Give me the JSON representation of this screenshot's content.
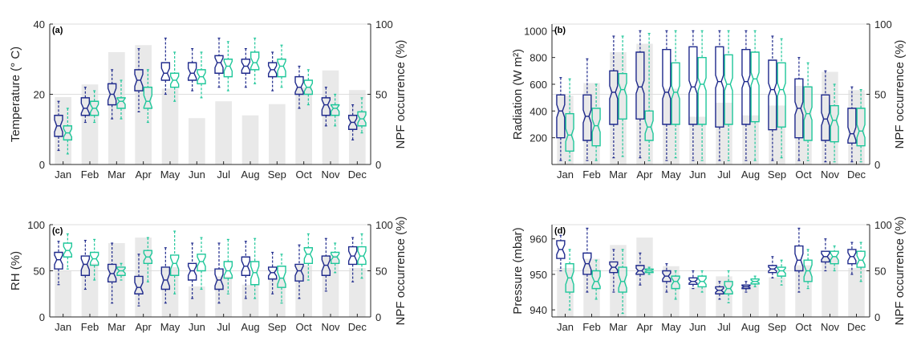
{
  "colors": {
    "series_a": "#1f2a8c",
    "series_b": "#1fc79a",
    "npf_bar": "#e9e9e9",
    "grid": "#dddddd"
  },
  "chart_data": [
    {
      "type": "box",
      "panel_label": "(a)",
      "ylabel": "Temperature (° C)",
      "ylabel_right": "NPF occurrence (%)",
      "categories": [
        "Jan",
        "Feb",
        "Mar",
        "Apr",
        "May",
        "Jun",
        "Jul",
        "Aug",
        "Sep",
        "Oct",
        "Nov",
        "Dec"
      ],
      "ylim": [
        0,
        40
      ],
      "yticks": [
        0,
        20,
        40
      ],
      "y2lim": [
        0,
        100
      ],
      "y2ticks": [
        0,
        50,
        100
      ],
      "grid": true,
      "npf_occurrence": [
        48,
        57,
        80,
        85,
        54,
        33,
        45,
        35,
        43,
        55,
        67,
        53
      ],
      "series": [
        {
          "boxes": [
            {
              "lo": 4,
              "q1": 8,
              "med": 11,
              "q3": 14,
              "hi": 18
            },
            {
              "lo": 12,
              "q1": 14,
              "med": 16,
              "q3": 19,
              "hi": 22
            },
            {
              "lo": 13,
              "q1": 17,
              "med": 20,
              "q3": 23,
              "hi": 27
            },
            {
              "lo": 15,
              "q1": 21,
              "med": 24,
              "q3": 27,
              "hi": 33
            },
            {
              "lo": 20,
              "q1": 24,
              "med": 26,
              "q3": 29,
              "hi": 36
            },
            {
              "lo": 21,
              "q1": 24,
              "med": 26,
              "q3": 29,
              "hi": 33
            },
            {
              "lo": 22,
              "q1": 26,
              "med": 29,
              "q3": 31,
              "hi": 36
            },
            {
              "lo": 22,
              "q1": 26,
              "med": 28,
              "q3": 30,
              "hi": 33
            },
            {
              "lo": 21,
              "q1": 25,
              "med": 27,
              "q3": 29,
              "hi": 32
            },
            {
              "lo": 16,
              "q1": 20,
              "med": 22,
              "q3": 25,
              "hi": 28
            },
            {
              "lo": 11,
              "q1": 14,
              "med": 17,
              "q3": 19,
              "hi": 22
            },
            {
              "lo": 7,
              "q1": 10,
              "med": 12,
              "q3": 14,
              "hi": 17
            }
          ]
        },
        {
          "boxes": [
            {
              "lo": 3,
              "q1": 7,
              "med": 9,
              "q3": 11,
              "hi": 16
            },
            {
              "lo": 12,
              "q1": 14,
              "med": 16,
              "q3": 18,
              "hi": 21
            },
            {
              "lo": 13,
              "q1": 16,
              "med": 18,
              "q3": 19,
              "hi": 24
            },
            {
              "lo": 12,
              "q1": 16,
              "med": 18,
              "q3": 22,
              "hi": 27
            },
            {
              "lo": 18,
              "q1": 22,
              "med": 24,
              "q3": 26,
              "hi": 32
            },
            {
              "lo": 19,
              "q1": 23,
              "med": 25,
              "q3": 27,
              "hi": 32
            },
            {
              "lo": 21,
              "q1": 25,
              "med": 28,
              "q3": 30,
              "hi": 35
            },
            {
              "lo": 23,
              "q1": 27,
              "med": 29,
              "q3": 32,
              "hi": 36
            },
            {
              "lo": 22,
              "q1": 25,
              "med": 28,
              "q3": 30,
              "hi": 34
            },
            {
              "lo": 17,
              "q1": 20,
              "med": 22,
              "q3": 24,
              "hi": 27
            },
            {
              "lo": 11,
              "q1": 14,
              "med": 16,
              "q3": 17,
              "hi": 20
            },
            {
              "lo": 9,
              "q1": 11,
              "med": 13,
              "q3": 15,
              "hi": 19
            }
          ]
        }
      ]
    },
    {
      "type": "box",
      "panel_label": "(b)",
      "ylabel": "Radiation (W m²)",
      "ylabel_right": "NPF occurrence (%)",
      "categories": [
        "Jan",
        "Feb",
        "Mar",
        "Apr",
        "May",
        "Jun",
        "Jul",
        "Aug",
        "Sep",
        "Oct",
        "Nov",
        "Dec"
      ],
      "ylim": [
        0,
        1050
      ],
      "yticks": [
        200,
        400,
        600,
        800,
        1000
      ],
      "y2lim": [
        0,
        100
      ],
      "y2ticks": [
        0,
        50,
        100
      ],
      "grid": true,
      "npf_occurrence": [
        49,
        58,
        80,
        86,
        54,
        34,
        44,
        35,
        42,
        56,
        66,
        53
      ],
      "series": [
        {
          "boxes": [
            {
              "lo": 30,
              "q1": 200,
              "med": 400,
              "q3": 520,
              "hi": 650
            },
            {
              "lo": 30,
              "q1": 180,
              "med": 360,
              "q3": 520,
              "hi": 790
            },
            {
              "lo": 50,
              "q1": 300,
              "med": 540,
              "q3": 700,
              "hi": 960
            },
            {
              "lo": 50,
              "q1": 340,
              "med": 580,
              "q3": 840,
              "hi": 1000
            },
            {
              "lo": 30,
              "q1": 300,
              "med": 540,
              "q3": 860,
              "hi": 1000
            },
            {
              "lo": 30,
              "q1": 300,
              "med": 580,
              "q3": 880,
              "hi": 1000
            },
            {
              "lo": 30,
              "q1": 280,
              "med": 620,
              "q3": 880,
              "hi": 1000
            },
            {
              "lo": 30,
              "q1": 300,
              "med": 620,
              "q3": 860,
              "hi": 1000
            },
            {
              "lo": 30,
              "q1": 260,
              "med": 560,
              "q3": 780,
              "hi": 960
            },
            {
              "lo": 30,
              "q1": 200,
              "med": 420,
              "q3": 640,
              "hi": 800
            },
            {
              "lo": 20,
              "q1": 180,
              "med": 340,
              "q3": 520,
              "hi": 700
            },
            {
              "lo": 20,
              "q1": 160,
              "med": 230,
              "q3": 420,
              "hi": 580
            }
          ]
        },
        {
          "boxes": [
            {
              "lo": 30,
              "q1": 100,
              "med": 220,
              "q3": 380,
              "hi": 640
            },
            {
              "lo": 30,
              "q1": 140,
              "med": 290,
              "q3": 420,
              "hi": 600
            },
            {
              "lo": 60,
              "q1": 340,
              "med": 560,
              "q3": 680,
              "hi": 960
            },
            {
              "lo": 30,
              "q1": 180,
              "med": 280,
              "q3": 400,
              "hi": 980
            },
            {
              "lo": 50,
              "q1": 300,
              "med": 540,
              "q3": 760,
              "hi": 1000
            },
            {
              "lo": 30,
              "q1": 300,
              "med": 600,
              "q3": 800,
              "hi": 1000
            },
            {
              "lo": 30,
              "q1": 300,
              "med": 600,
              "q3": 820,
              "hi": 1000
            },
            {
              "lo": 30,
              "q1": 320,
              "med": 640,
              "q3": 840,
              "hi": 1000
            },
            {
              "lo": 50,
              "q1": 280,
              "med": 560,
              "q3": 760,
              "hi": 940
            },
            {
              "lo": 30,
              "q1": 180,
              "med": 380,
              "q3": 580,
              "hi": 760
            },
            {
              "lo": 20,
              "q1": 170,
              "med": 330,
              "q3": 440,
              "hi": 600
            },
            {
              "lo": 20,
              "q1": 140,
              "med": 250,
              "q3": 420,
              "hi": 560
            }
          ]
        }
      ]
    },
    {
      "type": "box",
      "panel_label": "(c)",
      "ylabel": "RH (%)",
      "ylabel_right": "NPF occurrence (%)",
      "categories": [
        "Jan",
        "Feb",
        "Mar",
        "Apr",
        "May",
        "Jun",
        "Jul",
        "Aug",
        "Sep",
        "Oct",
        "Nov",
        "Dec"
      ],
      "ylim": [
        0,
        100
      ],
      "yticks": [
        0,
        50,
        100
      ],
      "y2lim": [
        0,
        100
      ],
      "y2ticks": [
        0,
        50,
        100
      ],
      "grid": true,
      "npf_occurrence": [
        50,
        58,
        80,
        86,
        54,
        33,
        44,
        35,
        43,
        56,
        67,
        53
      ],
      "series": [
        {
          "boxes": [
            {
              "lo": 35,
              "q1": 52,
              "med": 62,
              "q3": 70,
              "hi": 82
            },
            {
              "lo": 30,
              "q1": 45,
              "med": 57,
              "q3": 66,
              "hi": 83
            },
            {
              "lo": 15,
              "q1": 38,
              "med": 47,
              "q3": 57,
              "hi": 80
            },
            {
              "lo": 12,
              "q1": 25,
              "med": 32,
              "q3": 44,
              "hi": 68
            },
            {
              "lo": 15,
              "q1": 30,
              "med": 40,
              "q3": 54,
              "hi": 75
            },
            {
              "lo": 20,
              "q1": 40,
              "med": 50,
              "q3": 58,
              "hi": 80
            },
            {
              "lo": 15,
              "q1": 30,
              "med": 40,
              "q3": 52,
              "hi": 80
            },
            {
              "lo": 20,
              "q1": 45,
              "med": 55,
              "q3": 65,
              "hi": 82
            },
            {
              "lo": 25,
              "q1": 41,
              "med": 48,
              "q3": 54,
              "hi": 70
            },
            {
              "lo": 20,
              "q1": 39,
              "med": 50,
              "q3": 57,
              "hi": 78
            },
            {
              "lo": 28,
              "q1": 45,
              "med": 56,
              "q3": 66,
              "hi": 85
            },
            {
              "lo": 38,
              "q1": 57,
              "med": 66,
              "q3": 76,
              "hi": 86
            }
          ]
        },
        {
          "boxes": [
            {
              "lo": 52,
              "q1": 65,
              "med": 72,
              "q3": 80,
              "hi": 90
            },
            {
              "lo": 40,
              "q1": 56,
              "med": 63,
              "q3": 70,
              "hi": 84
            },
            {
              "lo": 40,
              "q1": 45,
              "med": 50,
              "q3": 54,
              "hi": 58
            },
            {
              "lo": 38,
              "q1": 58,
              "med": 65,
              "q3": 72,
              "hi": 86
            },
            {
              "lo": 25,
              "q1": 45,
              "med": 58,
              "q3": 67,
              "hi": 93
            },
            {
              "lo": 30,
              "q1": 50,
              "med": 60,
              "q3": 68,
              "hi": 86
            },
            {
              "lo": 25,
              "q1": 42,
              "med": 50,
              "q3": 60,
              "hi": 84
            },
            {
              "lo": 20,
              "q1": 35,
              "med": 48,
              "q3": 60,
              "hi": 85
            },
            {
              "lo": 15,
              "q1": 32,
              "med": 42,
              "q3": 55,
              "hi": 68
            },
            {
              "lo": 40,
              "q1": 58,
              "med": 68,
              "q3": 75,
              "hi": 90
            },
            {
              "lo": 48,
              "q1": 58,
              "med": 65,
              "q3": 70,
              "hi": 80
            },
            {
              "lo": 42,
              "q1": 57,
              "med": 66,
              "q3": 76,
              "hi": 90
            }
          ]
        }
      ]
    },
    {
      "type": "box",
      "panel_label": "(d)",
      "ylabel": "Pressure (mbar)",
      "ylabel_right": "NPF occurrence (%)",
      "categories": [
        "Jan",
        "Feb",
        "Mar",
        "Apr",
        "May",
        "Jun",
        "Jul",
        "Aug",
        "Sep",
        "Oct",
        "Nov",
        "Dec"
      ],
      "ylim": [
        938,
        964
      ],
      "yticks": [
        940,
        950,
        960
      ],
      "y2lim": [
        0,
        100
      ],
      "y2ticks": [
        0,
        50,
        100
      ],
      "grid": true,
      "npf_occurrence": [
        53,
        63,
        78,
        86,
        55,
        32,
        44,
        35,
        43,
        56,
        66,
        53
      ],
      "series": [
        {
          "boxes": [
            {
              "lo": 951,
              "q1": 954.5,
              "med": 957,
              "q3": 959.5,
              "hi": 961
            },
            {
              "lo": 945,
              "q1": 950,
              "med": 953,
              "q3": 956,
              "hi": 963
            },
            {
              "lo": 945,
              "q1": 950.5,
              "med": 952,
              "q3": 953.5,
              "hi": 957
            },
            {
              "lo": 947,
              "q1": 950,
              "med": 951,
              "q3": 952.5,
              "hi": 956
            },
            {
              "lo": 945,
              "q1": 948,
              "med": 949.5,
              "q3": 951,
              "hi": 953
            },
            {
              "lo": 946,
              "q1": 947.2,
              "med": 948,
              "q3": 949,
              "hi": 951
            },
            {
              "lo": 943,
              "q1": 944.5,
              "med": 945.5,
              "q3": 946.5,
              "hi": 948
            },
            {
              "lo": 945,
              "q1": 946,
              "med": 946.5,
              "q3": 947,
              "hi": 948
            },
            {
              "lo": 949,
              "q1": 950.5,
              "med": 951.5,
              "q3": 952.5,
              "hi": 955
            },
            {
              "lo": 945,
              "q1": 951,
              "med": 954,
              "q3": 958,
              "hi": 963
            },
            {
              "lo": 951,
              "q1": 953.5,
              "med": 955,
              "q3": 956.5,
              "hi": 960
            },
            {
              "lo": 950,
              "q1": 953,
              "med": 955,
              "q3": 957,
              "hi": 959
            }
          ]
        },
        {
          "boxes": [
            {
              "lo": 940,
              "q1": 945,
              "med": 949,
              "q3": 953,
              "hi": 957
            },
            {
              "lo": 943,
              "q1": 946,
              "med": 948,
              "q3": 951,
              "hi": 954
            },
            {
              "lo": 939,
              "q1": 945,
              "med": 948,
              "q3": 952,
              "hi": 957
            },
            {
              "lo": 950,
              "q1": 950.5,
              "med": 951,
              "q3": 951.5,
              "hi": 952
            },
            {
              "lo": 943,
              "q1": 946,
              "med": 948,
              "q3": 949.5,
              "hi": 951
            },
            {
              "lo": 945,
              "q1": 946.5,
              "med": 948,
              "q3": 949.5,
              "hi": 951
            },
            {
              "lo": 942,
              "q1": 944.5,
              "med": 946,
              "q3": 948,
              "hi": 951
            },
            {
              "lo": 946.5,
              "q1": 947.3,
              "med": 948,
              "q3": 948.7,
              "hi": 949.5
            },
            {
              "lo": 947,
              "q1": 949.5,
              "med": 951,
              "q3": 952,
              "hi": 954
            },
            {
              "lo": 946,
              "q1": 948,
              "med": 951,
              "q3": 954,
              "hi": 957
            },
            {
              "lo": 951,
              "q1": 953,
              "med": 955,
              "q3": 956.5,
              "hi": 958
            },
            {
              "lo": 948,
              "q1": 952,
              "med": 954,
              "q3": 956.5,
              "hi": 959
            }
          ]
        }
      ]
    }
  ]
}
